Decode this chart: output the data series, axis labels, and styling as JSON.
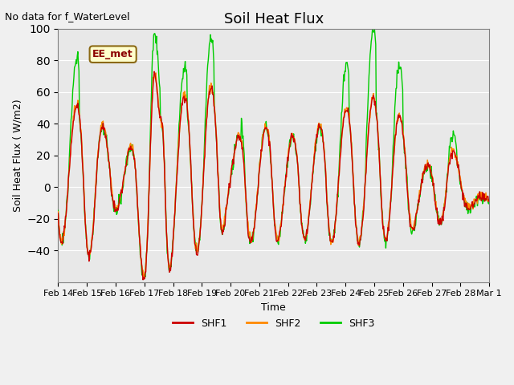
{
  "title": "Soil Heat Flux",
  "subtitle": "No data for f_WaterLevel",
  "ylabel": "Soil Heat Flux ( W/m2)",
  "xlabel": "Time",
  "ylim": [
    -60,
    100
  ],
  "yticks": [
    -40,
    -20,
    0,
    20,
    40,
    60,
    80,
    100
  ],
  "bg_color": "#e8e8e8",
  "legend_label": "EE_met",
  "legend_entries": [
    "SHF1",
    "SHF2",
    "SHF3"
  ],
  "colors": {
    "SHF1": "#cc0000",
    "SHF2": "#ff8800",
    "SHF3": "#00cc00"
  },
  "xtick_labels": [
    "Feb 14",
    "Feb 15",
    "Feb 16",
    "Feb 17",
    "Feb 18",
    "Feb 19",
    "Feb 20",
    "Feb 21",
    "Feb 22",
    "Feb 23",
    "Feb 24",
    "Feb 25",
    "Feb 26",
    "Feb 27",
    "Feb 28",
    "Mar 1"
  ],
  "n_days": 16,
  "points_per_day": 48
}
